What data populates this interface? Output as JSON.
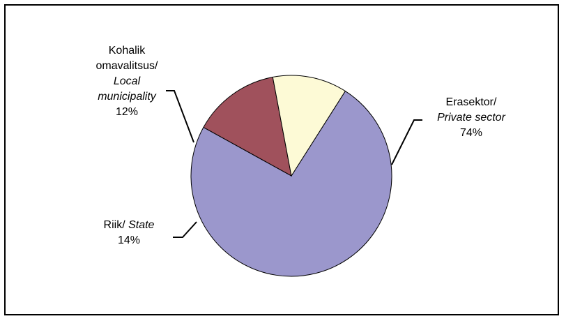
{
  "chart_data": {
    "type": "pie",
    "slices": [
      {
        "label_et": "Erasektor/",
        "label_en": "Private sector",
        "value": 74,
        "value_label": "74%",
        "color": "#9b97cc"
      },
      {
        "label_et": "Riik/",
        "label_en": "State",
        "value": 14,
        "value_label": "14%",
        "color": "#a0515c"
      },
      {
        "label_et": "Kohalik omavalitsus/",
        "label_et_line1": "Kohalik",
        "label_et_line2": "omavalitsus/",
        "label_en": "Local municipality",
        "label_en_line1": "Local",
        "label_en_line2": "municipality",
        "value": 12,
        "value_label": "12%",
        "color": "#fdfad6"
      }
    ],
    "legend": "none"
  }
}
